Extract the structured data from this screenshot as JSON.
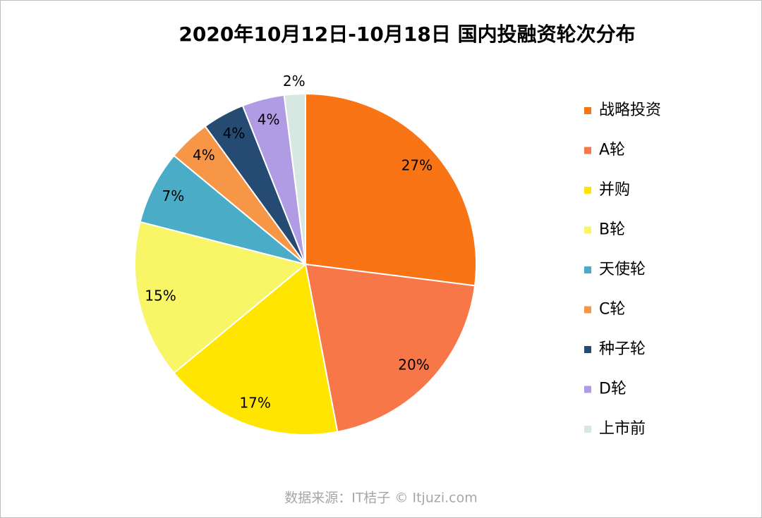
{
  "chart_data": {
    "type": "pie",
    "title": "2020年10月12日-10月18日 国内投融资轮次分布",
    "categories": [
      "战略投资",
      "A轮",
      "并购",
      "B轮",
      "天使轮",
      "C轮",
      "种子轮",
      "D轮",
      "上市前"
    ],
    "values": [
      27,
      20,
      17,
      15,
      7,
      4,
      4,
      4,
      2
    ],
    "value_labels": [
      "27%",
      "20%",
      "17%",
      "15%",
      "7%",
      "4%",
      "4%",
      "4%",
      "2%"
    ],
    "colors": [
      "#f97414",
      "#f77748",
      "#ffe500",
      "#f8f566",
      "#4aacc6",
      "#f79646",
      "#264b73",
      "#b09ce4",
      "#d6e8e1"
    ],
    "legend": "right",
    "source": "数据来源：IT桔子 © Itjuzi.com"
  }
}
